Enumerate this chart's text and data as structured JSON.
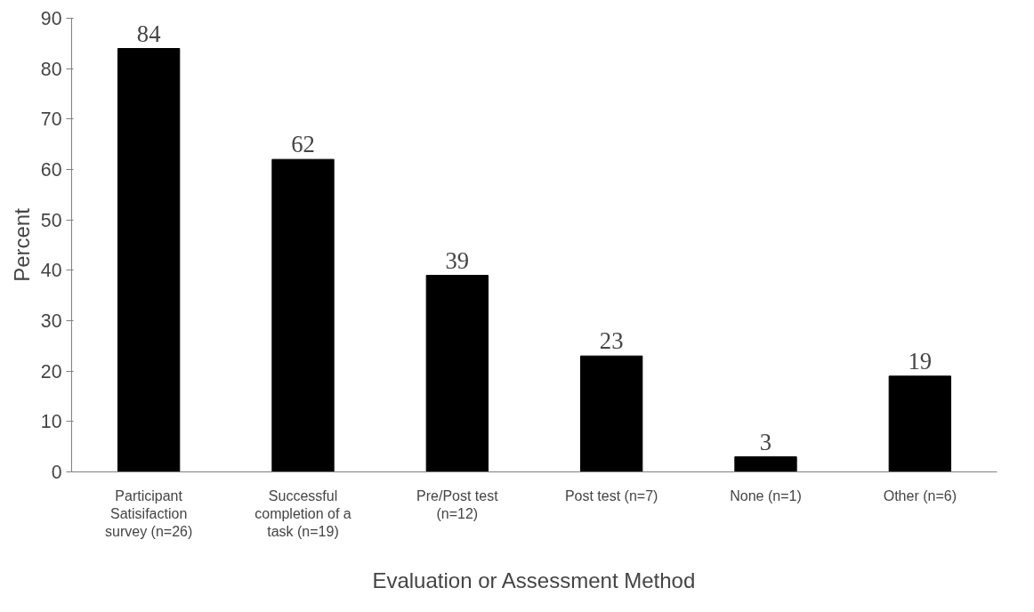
{
  "chart_data": {
    "type": "bar",
    "xlabel": "Evaluation or Assessment Method",
    "ylabel": "Percent",
    "categories": [
      "Participant Satisifaction survey (n=26)",
      "Successful completion of a task (n=19)",
      "Pre/Post test (n=12)",
      "Post test (n=7)",
      "None (n=1)",
      "Other (n=6)"
    ],
    "values": [
      84,
      62,
      39,
      23,
      3,
      19
    ],
    "color": "#000000",
    "ylim": [
      0,
      90
    ],
    "yticks": [
      0,
      10,
      20,
      30,
      40,
      50,
      60,
      70,
      80,
      90
    ],
    "grid": false,
    "data_labels": true
  }
}
